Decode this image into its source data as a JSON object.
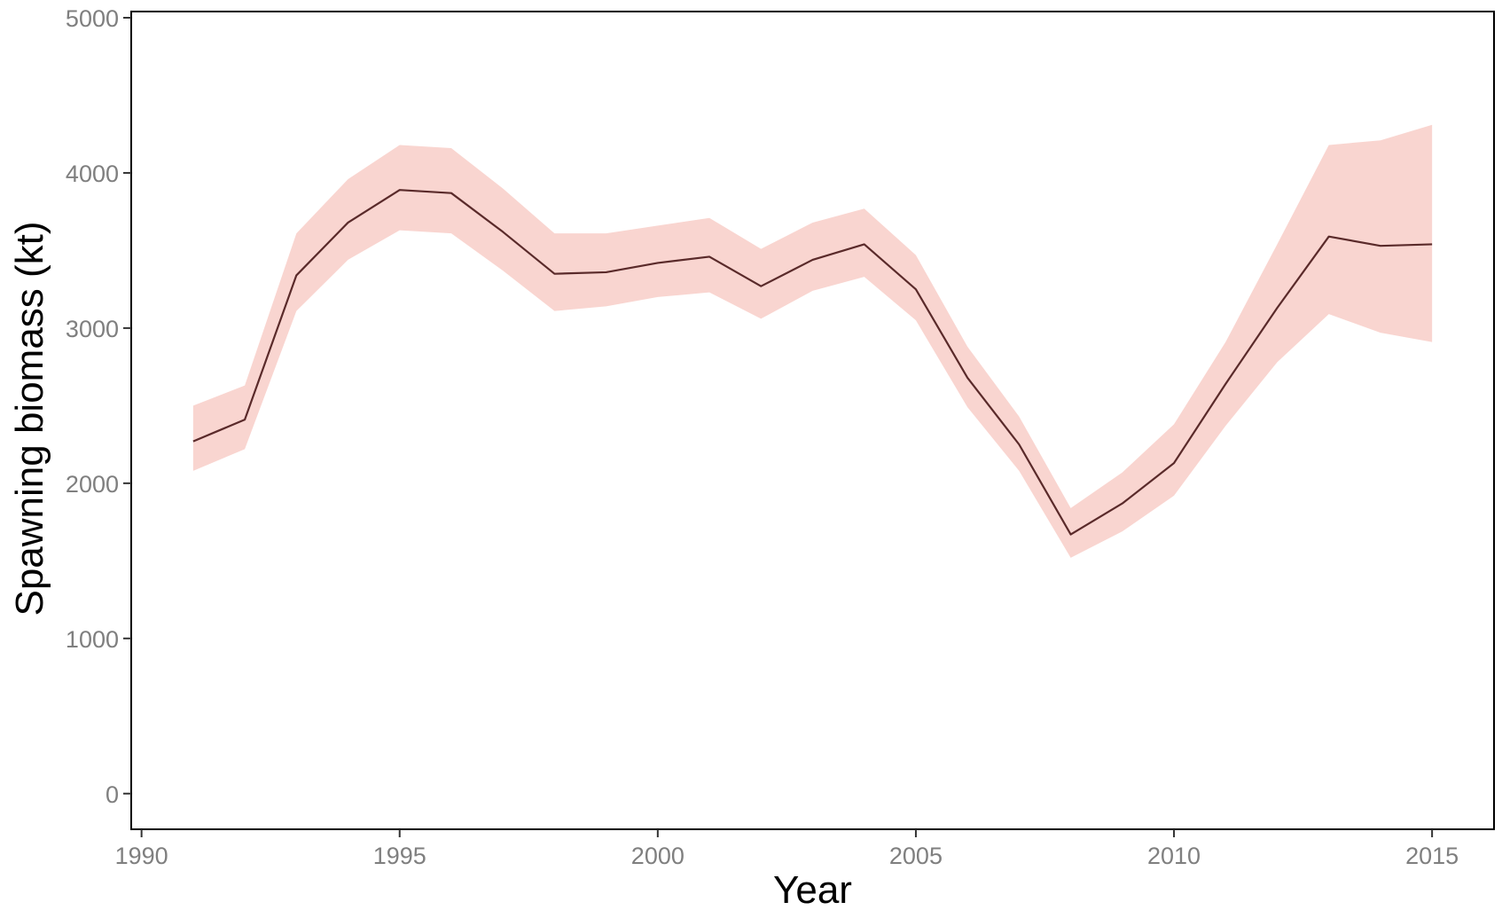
{
  "chart_data": {
    "type": "area",
    "xlabel": "Year",
    "ylabel": "Spawning biomass (kt)",
    "xlim": [
      1989.8,
      2016.2
    ],
    "ylim": [
      -230,
      5040
    ],
    "x_ticks": [
      1990,
      1995,
      2000,
      2005,
      2010,
      2015
    ],
    "y_ticks": [
      0,
      1000,
      2000,
      3000,
      4000,
      5000
    ],
    "grid": false,
    "legend": "none",
    "colors": {
      "line": "#5a2a2a",
      "band": "#f9d5d0",
      "frame": "#000000",
      "tick_text": "#7f7f7f"
    },
    "x": [
      1991,
      1992,
      1993,
      1994,
      1995,
      1996,
      1997,
      1998,
      1999,
      2000,
      2001,
      2002,
      2003,
      2004,
      2005,
      2006,
      2007,
      2008,
      2009,
      2010,
      2011,
      2012,
      2013,
      2014,
      2015
    ],
    "series": [
      {
        "values": [
          2270,
          2410,
          3340,
          3680,
          3890,
          3870,
          3620,
          3350,
          3360,
          3420,
          3460,
          3270,
          3440,
          3540,
          3250,
          2680,
          2250,
          1670,
          1870,
          2130,
          2640,
          3130,
          3590,
          3530,
          3540
        ]
      }
    ],
    "band": {
      "lower": [
        2080,
        2220,
        3110,
        3440,
        3630,
        3610,
        3370,
        3110,
        3140,
        3200,
        3230,
        3060,
        3240,
        3330,
        3050,
        2490,
        2080,
        1520,
        1690,
        1920,
        2370,
        2780,
        3090,
        2970,
        2910
      ],
      "upper": [
        2500,
        2630,
        3610,
        3960,
        4180,
        4160,
        3900,
        3610,
        3610,
        3660,
        3710,
        3510,
        3680,
        3770,
        3470,
        2880,
        2430,
        1840,
        2070,
        2380,
        2910,
        3540,
        4180,
        4210,
        4310
      ]
    }
  }
}
